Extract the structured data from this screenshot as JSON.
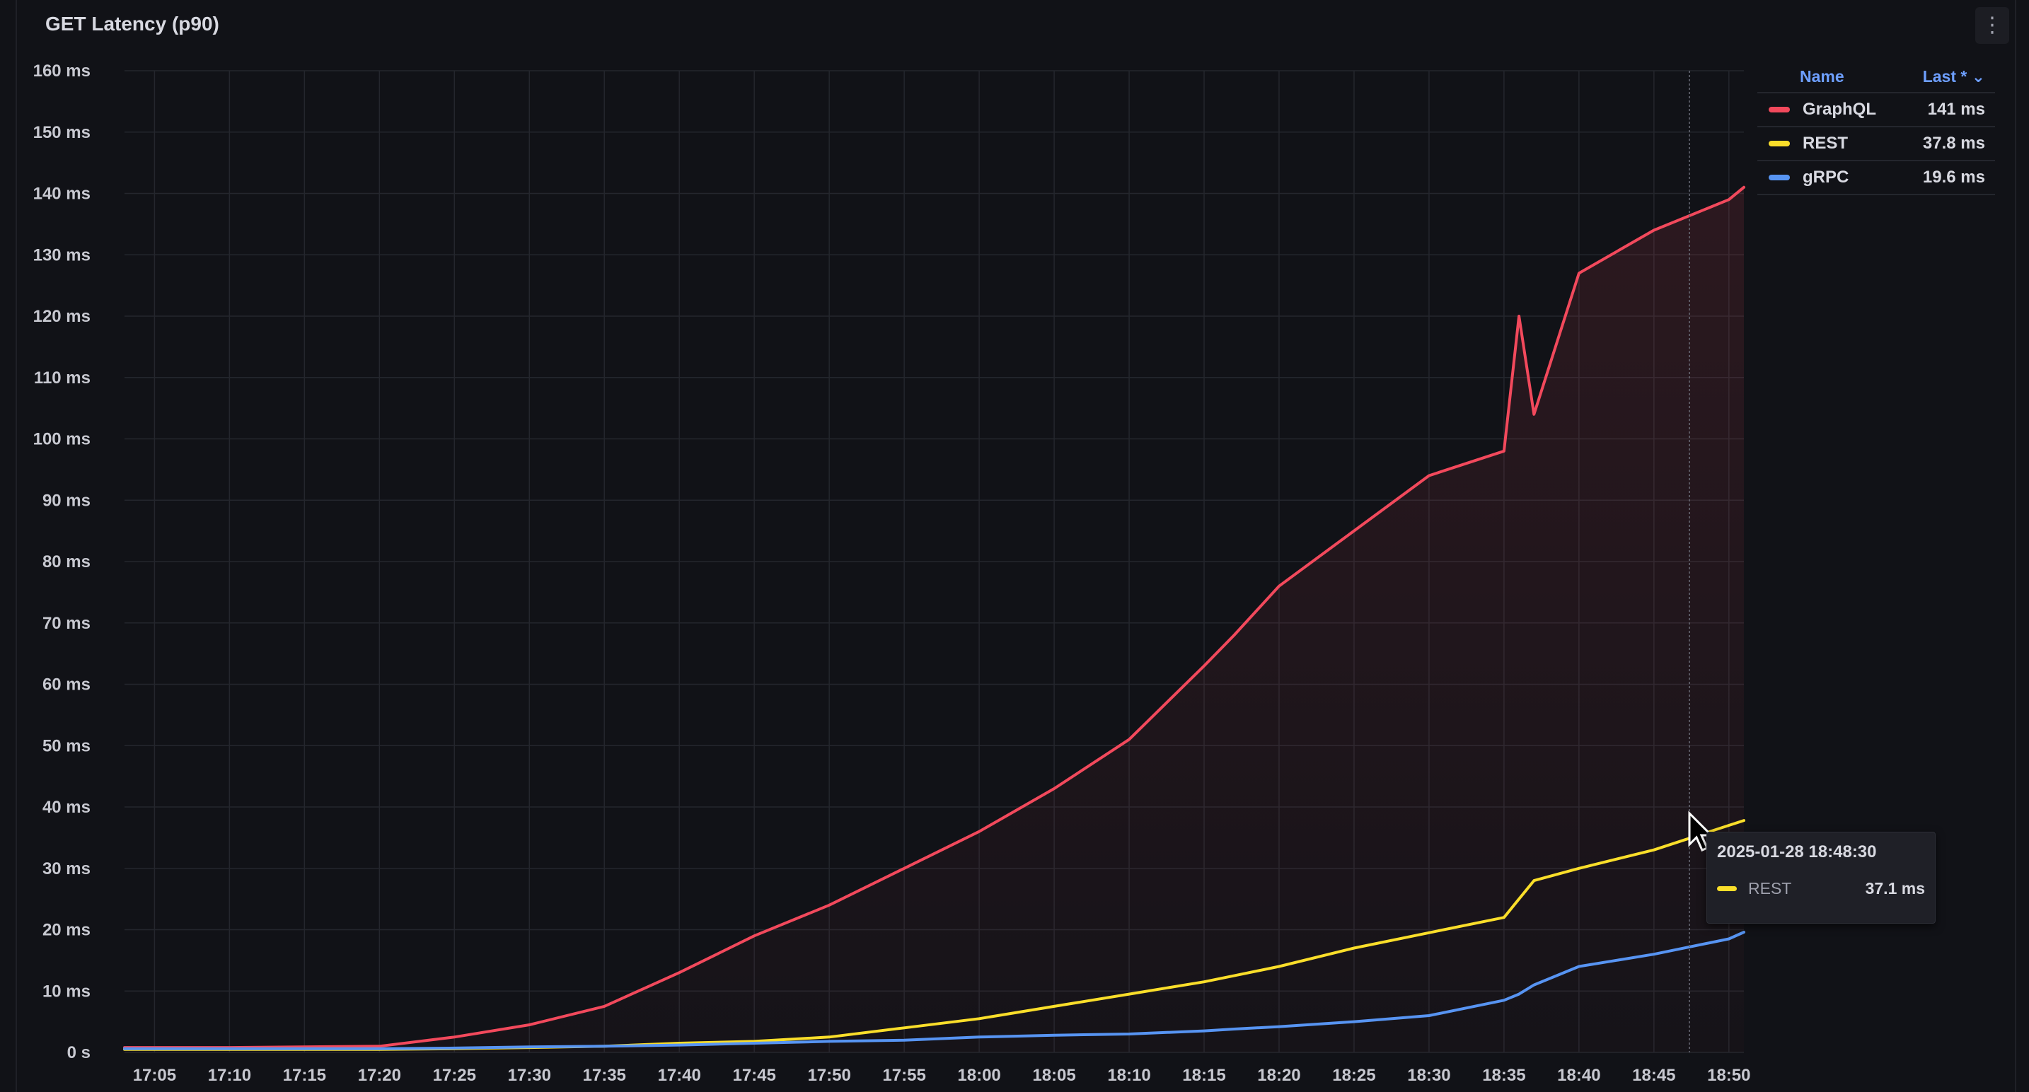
{
  "panel": {
    "title": "GET Latency (p90)",
    "menu_icon": "vertical-ellipsis-icon"
  },
  "legend": {
    "name_header": "Name",
    "calc_header": "Last *",
    "rows": [
      {
        "name": "GraphQL",
        "value": "141 ms",
        "color": "#f2495c"
      },
      {
        "name": "REST",
        "value": "37.8 ms",
        "color": "#fade2a"
      },
      {
        "name": "gRPC",
        "value": "19.6 ms",
        "color": "#5794f2"
      }
    ]
  },
  "tooltip": {
    "time": "2025-01-28 18:48:30",
    "series": "REST",
    "value": "37.1 ms",
    "color": "#fade2a"
  },
  "chart_data": {
    "type": "line",
    "title": "GET Latency (p90)",
    "xlabel": "",
    "ylabel": "",
    "x_ticks": [
      "17:05",
      "17:10",
      "17:15",
      "17:20",
      "17:25",
      "17:30",
      "17:35",
      "17:40",
      "17:45",
      "17:50",
      "17:55",
      "18:00",
      "18:05",
      "18:10",
      "18:15",
      "18:20",
      "18:25",
      "18:30",
      "18:35",
      "18:40",
      "18:45",
      "18:50"
    ],
    "y_ticks": [
      "0 s",
      "10 ms",
      "20 ms",
      "30 ms",
      "40 ms",
      "50 ms",
      "60 ms",
      "70 ms",
      "80 ms",
      "90 ms",
      "100 ms",
      "110 ms",
      "120 ms",
      "130 ms",
      "140 ms",
      "150 ms",
      "160 ms"
    ],
    "ylim": [
      0,
      160
    ],
    "xlim": [
      "17:03",
      "18:51"
    ],
    "grid": true,
    "legend_position": "right",
    "x": [
      "17:03",
      "17:10",
      "17:20",
      "17:25",
      "17:30",
      "17:35",
      "17:40",
      "17:45",
      "17:50",
      "17:55",
      "18:00",
      "18:05",
      "18:10",
      "18:15",
      "18:17",
      "18:20",
      "18:25",
      "18:30",
      "18:35",
      "18:36",
      "18:37",
      "18:40",
      "18:45",
      "18:50",
      "18:51"
    ],
    "series": [
      {
        "name": "GraphQL",
        "color": "#f2495c",
        "values": [
          0.8,
          0.8,
          1,
          2.5,
          4.5,
          7.5,
          13,
          19,
          24,
          30,
          36,
          43,
          51,
          63,
          68,
          76,
          85,
          94,
          98,
          120,
          104,
          127,
          134,
          139,
          141
        ]
      },
      {
        "name": "REST",
        "color": "#fade2a",
        "values": [
          0.5,
          0.5,
          0.5,
          0.6,
          0.8,
          1,
          1.5,
          1.8,
          2.5,
          4,
          5.5,
          7.5,
          9.5,
          11.5,
          12.5,
          14,
          17,
          19.5,
          22,
          25,
          28,
          30,
          33,
          37,
          37.8
        ]
      },
      {
        "name": "gRPC",
        "color": "#5794f2",
        "values": [
          0.6,
          0.6,
          0.6,
          0.7,
          0.9,
          1,
          1.2,
          1.5,
          1.8,
          2,
          2.5,
          2.8,
          3,
          3.5,
          3.8,
          4.2,
          5,
          6,
          8.5,
          9.5,
          11,
          14,
          16,
          18.5,
          19.6
        ]
      }
    ]
  }
}
